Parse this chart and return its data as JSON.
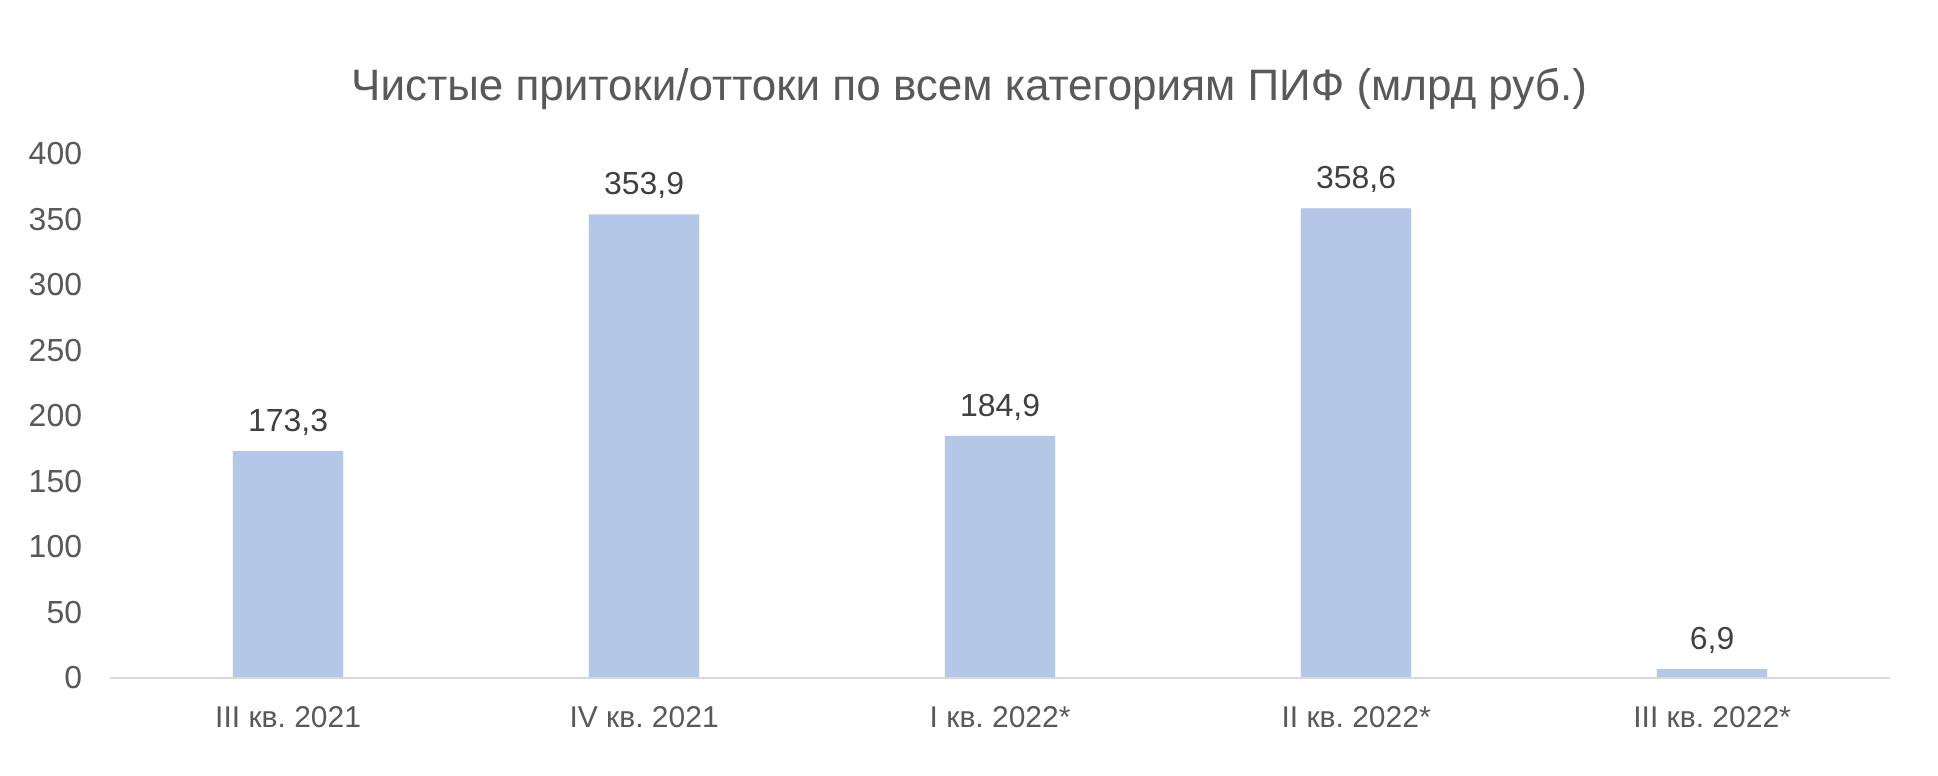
{
  "chart_data": {
    "type": "bar",
    "title": "Чистые притоки/оттоки по всем категориям ПИФ (млрд руб.)",
    "categories": [
      "III кв. 2021",
      "IV кв. 2021",
      "I кв. 2022*",
      "II кв. 2022*",
      "III кв. 2022*"
    ],
    "values": [
      173.3,
      353.9,
      184.9,
      358.6,
      6.9
    ],
    "value_labels": [
      "173,3",
      "353,9",
      "184,9",
      "358,6",
      "6,9"
    ],
    "color": "#b4c7e7",
    "ylim": [
      0,
      400
    ],
    "yticks": [
      0,
      50,
      100,
      150,
      200,
      250,
      300,
      350,
      400
    ],
    "grid": false
  }
}
